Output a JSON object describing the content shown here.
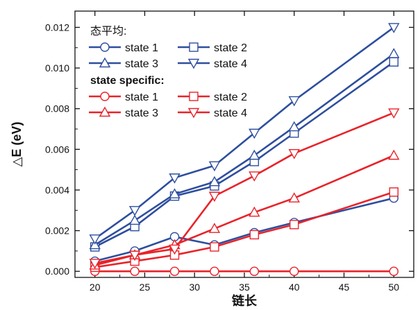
{
  "chart_data": {
    "type": "line",
    "title": "",
    "xlabel": "链长",
    "ylabel": "△E (eV)",
    "xlim": [
      18,
      52
    ],
    "ylim": [
      -0.0003,
      0.0128
    ],
    "xticks": [
      20,
      25,
      30,
      35,
      40,
      45,
      50
    ],
    "yticks": [
      0.0,
      0.002,
      0.004,
      0.006,
      0.008,
      0.01,
      0.012
    ],
    "ytick_labels": [
      "0.000",
      "0.002",
      "0.004",
      "0.006",
      "0.008",
      "0.010",
      "0.012"
    ],
    "xtick_labels": [
      "20",
      "25",
      "30",
      "35",
      "40",
      "45",
      "50"
    ],
    "grid": false,
    "legend_position": "top-left",
    "legend_groups": [
      {
        "heading": "态平均:",
        "color": "#2e4e9e",
        "series": [
          0,
          1,
          2,
          3
        ]
      },
      {
        "heading": "state specific:",
        "color": "#e8232a",
        "series": [
          4,
          5,
          6,
          7
        ]
      }
    ],
    "x": [
      20,
      24,
      28,
      32,
      36,
      40,
      50
    ],
    "series": [
      {
        "name": "state 1",
        "group": "态平均",
        "marker": "circle",
        "color": "#2e4e9e",
        "values": [
          0.0005,
          0.001,
          0.0017,
          0.0013,
          0.0019,
          0.0024,
          0.0036
        ]
      },
      {
        "name": "state 2",
        "group": "态平均",
        "marker": "square",
        "color": "#2e4e9e",
        "values": [
          0.0012,
          0.0022,
          0.0037,
          0.0042,
          0.0054,
          0.0068,
          0.0103
        ]
      },
      {
        "name": "state 3",
        "group": "态平均",
        "marker": "triangle-up",
        "color": "#2e4e9e",
        "values": [
          0.0013,
          0.0025,
          0.0038,
          0.0044,
          0.0057,
          0.0071,
          0.0107
        ]
      },
      {
        "name": "state 4",
        "group": "态平均",
        "marker": "triangle-down",
        "color": "#2e4e9e",
        "values": [
          0.0016,
          0.003,
          0.0046,
          0.0052,
          0.0068,
          0.0084,
          0.012
        ]
      },
      {
        "name": "state 1",
        "group": "state specific",
        "marker": "circle",
        "color": "#e8232a",
        "values": [
          0.0,
          0.0,
          0.0,
          0.0,
          0.0,
          0.0,
          0.0
        ]
      },
      {
        "name": "state 2",
        "group": "state specific",
        "marker": "square",
        "color": "#e8232a",
        "values": [
          0.0002,
          0.0005,
          0.0008,
          0.0012,
          0.0018,
          0.0023,
          0.0039
        ]
      },
      {
        "name": "state 3",
        "group": "state specific",
        "marker": "triangle-up",
        "color": "#e8232a",
        "values": [
          0.0003,
          0.0008,
          0.0013,
          0.0021,
          0.0029,
          0.0036,
          0.0057
        ]
      },
      {
        "name": "state 4",
        "group": "state specific",
        "marker": "triangle-down",
        "color": "#e8232a",
        "values": [
          0.0004,
          0.0008,
          0.0011,
          0.0037,
          0.0047,
          0.0058,
          0.0078
        ]
      }
    ]
  }
}
